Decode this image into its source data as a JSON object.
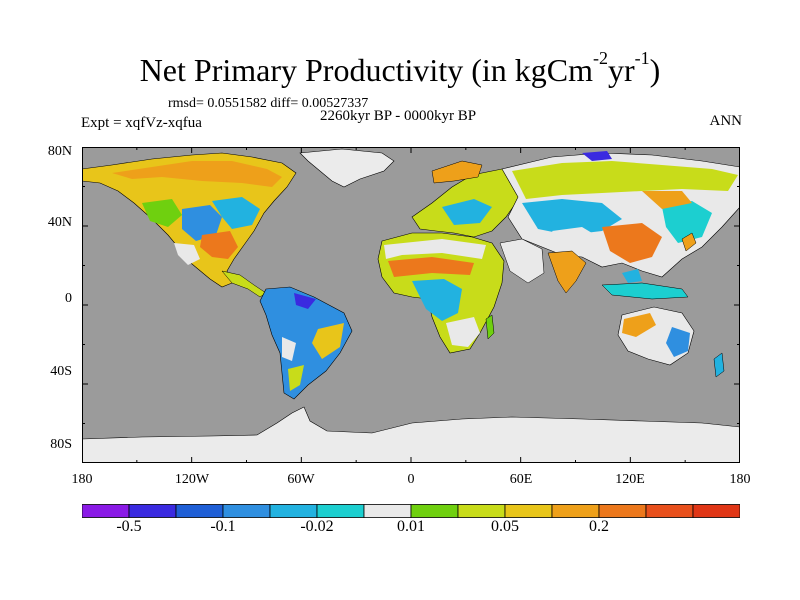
{
  "title": {
    "main": "Net Primary Productivity (in kgCm",
    "sup1": "-2",
    "mid": "yr",
    "sup2": "-1",
    "close": ")"
  },
  "stats": "rmsd= 0.0551582 diff= 0.00527337",
  "experiment": "Expt = xqfVz-xqfua",
  "period": "2260kyr BP - 0000kyr BP",
  "season": "ANN",
  "map": {
    "lat_labels": [
      "80N",
      "40N",
      "0",
      "40S",
      "80S"
    ],
    "lon_labels": [
      "180",
      "120W",
      "60W",
      "0",
      "60E",
      "120E",
      "180"
    ],
    "ocean_color": "#9b9b9b",
    "ice_color": "#ebebeb"
  },
  "colorbar": {
    "colors": [
      "#8a1ae6",
      "#3a2ae0",
      "#1f5fd6",
      "#2f8fe0",
      "#22b2e0",
      "#1ccfd0",
      "#e9e9e9",
      "#6fd00f",
      "#c8dc1a",
      "#e8c51a",
      "#eea01a",
      "#ec781c",
      "#e8501c",
      "#e03616"
    ],
    "labels": [
      "-0.5",
      "-0.1",
      "-0.02",
      "0.01",
      "0.05",
      "0.2"
    ],
    "label_positions": [
      1,
      3,
      5,
      7,
      9,
      11
    ]
  }
}
